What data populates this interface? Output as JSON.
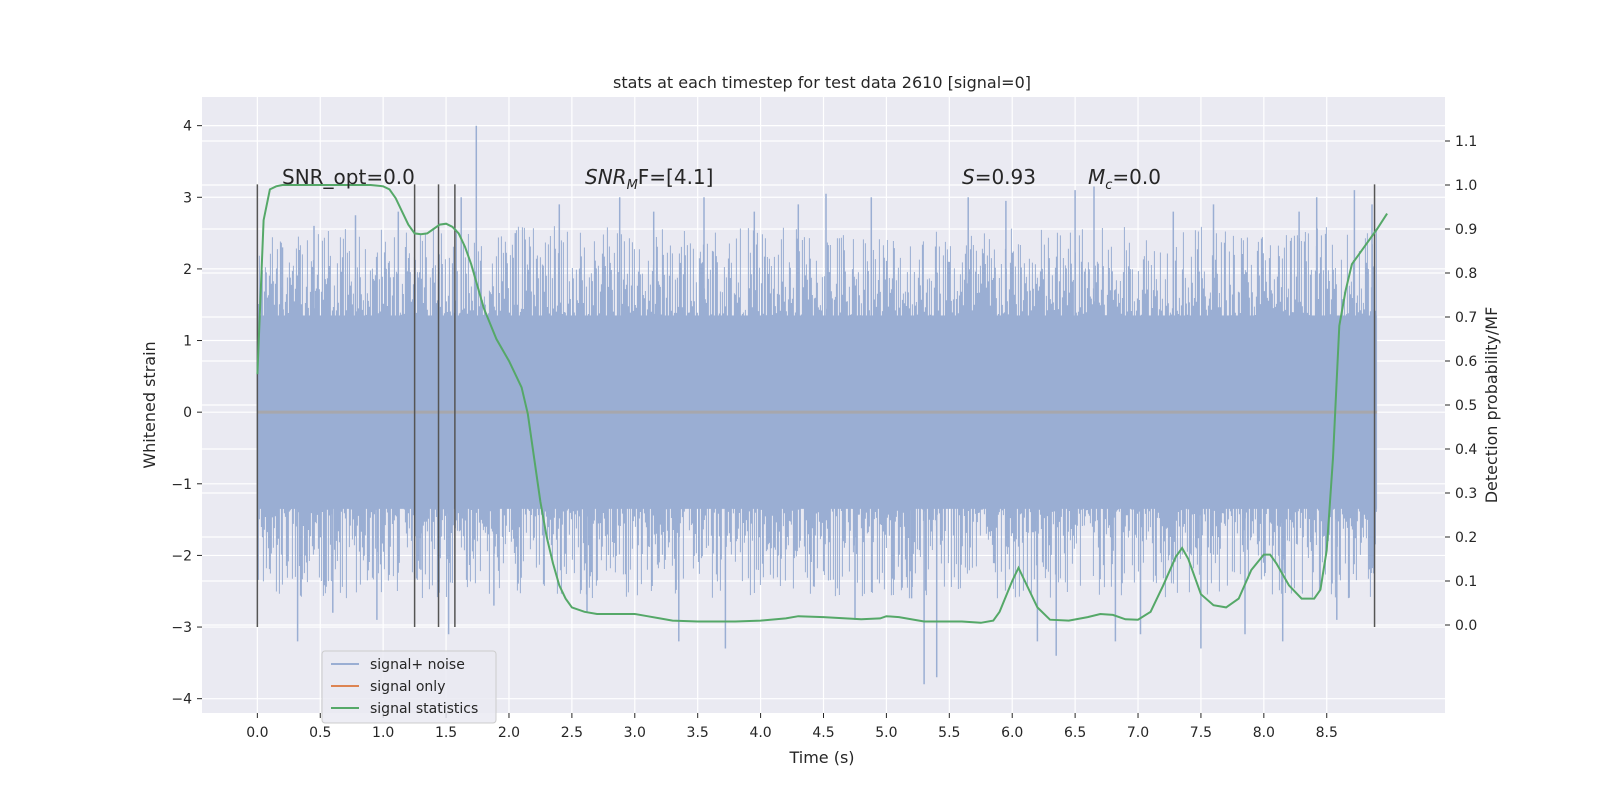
{
  "chart_data": {
    "type": "line",
    "title": "stats at each timestep for test data 2610 [signal=0]",
    "xlabel": "Time (s)",
    "ylabel_left": "Whitened strain",
    "ylabel_right": "Detection probability/MF",
    "xlim": [
      -0.44,
      9.44
    ],
    "ylim_left": [
      -4.2,
      4.4
    ],
    "ylim_right": [
      -0.2,
      1.2
    ],
    "x_ticks": [
      0.0,
      0.5,
      1.0,
      1.5,
      2.0,
      2.5,
      3.0,
      3.5,
      4.0,
      4.5,
      5.0,
      5.5,
      6.0,
      6.5,
      7.0,
      7.5,
      8.0,
      8.5
    ],
    "x_tick_labels": [
      "0.0",
      "0.5",
      "1.0",
      "1.5",
      "2.0",
      "2.5",
      "3.0",
      "3.5",
      "4.0",
      "4.5",
      "5.0",
      "5.5",
      "6.0",
      "6.5",
      "7.0",
      "7.5",
      "8.0",
      "8.5"
    ],
    "y_left_ticks": [
      -4,
      -3,
      -2,
      -1,
      0,
      1,
      2,
      3,
      4
    ],
    "y_left_tick_labels": [
      "−4",
      "−3",
      "−2",
      "−1",
      "0",
      "1",
      "2",
      "3",
      "4"
    ],
    "y_right_ticks": [
      0.0,
      0.1,
      0.2,
      0.3,
      0.4,
      0.5,
      0.6,
      0.7,
      0.8,
      0.9,
      1.0,
      1.1
    ],
    "y_right_tick_labels": [
      "0.0",
      "0.1",
      "0.2",
      "0.3",
      "0.4",
      "0.5",
      "0.6",
      "0.7",
      "0.8",
      "0.9",
      "1.0",
      "1.1"
    ],
    "annotations": {
      "snr_opt": "SNR_opt=0.0",
      "snr_mf_prefix": "SNR",
      "snr_mf_sub": "M",
      "snr_mf_suffix": "F=[4.1]",
      "s_symbol": "S",
      "s_value": "=0.93",
      "mc_symbol": "M",
      "mc_sub": "c",
      "mc_value": "=0.0"
    },
    "vlines_x": [
      0.0,
      1.25,
      1.44,
      1.57,
      8.88
    ],
    "vline_range_left": [
      -3.0,
      3.18
    ],
    "noise_band": {
      "x_range": [
        0.0,
        8.9
      ],
      "core_range": [
        -1.35,
        1.35
      ],
      "typical_extreme_range": [
        -2.6,
        2.6
      ],
      "peaks": [
        [
          0.08,
          1.6
        ],
        [
          0.2,
          2.3
        ],
        [
          0.32,
          -3.2
        ],
        [
          0.45,
          2.6
        ],
        [
          0.6,
          -2.8
        ],
        [
          0.78,
          2.75
        ],
        [
          0.95,
          -2.9
        ],
        [
          1.12,
          2.8
        ],
        [
          1.3,
          -2.2
        ],
        [
          1.52,
          -3.1
        ],
        [
          1.62,
          3.0
        ],
        [
          1.74,
          4.0
        ],
        [
          1.88,
          -2.7
        ],
        [
          2.05,
          2.5
        ],
        [
          2.4,
          2.9
        ],
        [
          2.62,
          -2.8
        ],
        [
          2.88,
          3.0
        ],
        [
          3.15,
          2.8
        ],
        [
          3.35,
          -3.2
        ],
        [
          3.55,
          3.0
        ],
        [
          3.72,
          -3.3
        ],
        [
          3.95,
          2.8
        ],
        [
          4.3,
          2.9
        ],
        [
          4.52,
          3.05
        ],
        [
          4.75,
          -2.9
        ],
        [
          4.88,
          3.0
        ],
        [
          5.2,
          -2.6
        ],
        [
          5.3,
          -3.8
        ],
        [
          5.4,
          -3.7
        ],
        [
          5.65,
          3.0
        ],
        [
          5.95,
          2.95
        ],
        [
          6.2,
          -3.2
        ],
        [
          6.35,
          -3.4
        ],
        [
          6.5,
          3.1
        ],
        [
          6.65,
          3.15
        ],
        [
          6.82,
          -3.2
        ],
        [
          7.02,
          -3.1
        ],
        [
          7.28,
          2.8
        ],
        [
          7.5,
          -3.3
        ],
        [
          7.6,
          2.9
        ],
        [
          7.85,
          -3.1
        ],
        [
          8.15,
          -3.2
        ],
        [
          8.28,
          2.8
        ],
        [
          8.42,
          3.0
        ],
        [
          8.58,
          -2.9
        ],
        [
          8.72,
          3.1
        ],
        [
          8.86,
          2.9
        ]
      ]
    },
    "signal_statistics": {
      "x": [
        0.0,
        0.05,
        0.1,
        0.15,
        0.2,
        0.3,
        0.5,
        0.7,
        0.9,
        1.0,
        1.05,
        1.1,
        1.15,
        1.2,
        1.25,
        1.3,
        1.35,
        1.4,
        1.45,
        1.5,
        1.55,
        1.6,
        1.65,
        1.7,
        1.75,
        1.8,
        1.9,
        2.0,
        2.1,
        2.15,
        2.2,
        2.25,
        2.3,
        2.35,
        2.4,
        2.45,
        2.5,
        2.6,
        2.7,
        2.8,
        2.9,
        3.0,
        3.1,
        3.2,
        3.3,
        3.5,
        3.8,
        4.0,
        4.2,
        4.3,
        4.5,
        4.8,
        4.95,
        5.0,
        5.1,
        5.3,
        5.6,
        5.75,
        5.85,
        5.9,
        6.0,
        6.05,
        6.1,
        6.2,
        6.3,
        6.45,
        6.6,
        6.7,
        6.8,
        6.9,
        7.0,
        7.1,
        7.2,
        7.3,
        7.35,
        7.4,
        7.5,
        7.6,
        7.7,
        7.8,
        7.9,
        8.0,
        8.05,
        8.1,
        8.2,
        8.3,
        8.4,
        8.45,
        8.5,
        8.55,
        8.6,
        8.65,
        8.7,
        8.8,
        8.9,
        8.98
      ],
      "y": [
        0.57,
        0.92,
        0.99,
        0.997,
        1.0,
        1.0,
        1.0,
        1.0,
        1.0,
        0.997,
        0.99,
        0.97,
        0.94,
        0.91,
        0.89,
        0.888,
        0.89,
        0.9,
        0.91,
        0.912,
        0.905,
        0.89,
        0.86,
        0.82,
        0.77,
        0.72,
        0.65,
        0.6,
        0.54,
        0.48,
        0.38,
        0.28,
        0.2,
        0.14,
        0.09,
        0.06,
        0.04,
        0.03,
        0.025,
        0.025,
        0.025,
        0.025,
        0.02,
        0.015,
        0.01,
        0.008,
        0.008,
        0.01,
        0.015,
        0.02,
        0.018,
        0.013,
        0.015,
        0.02,
        0.018,
        0.008,
        0.008,
        0.005,
        0.01,
        0.03,
        0.1,
        0.13,
        0.1,
        0.04,
        0.012,
        0.01,
        0.018,
        0.025,
        0.023,
        0.013,
        0.012,
        0.03,
        0.09,
        0.155,
        0.175,
        0.15,
        0.07,
        0.045,
        0.04,
        0.06,
        0.125,
        0.16,
        0.16,
        0.14,
        0.09,
        0.06,
        0.06,
        0.08,
        0.17,
        0.38,
        0.68,
        0.76,
        0.82,
        0.86,
        0.9,
        0.935
      ]
    },
    "legend": {
      "location": "lower-left",
      "entries": [
        "signal+ noise",
        "signal only",
        "signal statistics"
      ]
    },
    "colors": {
      "plot_background": "#eaeaf2",
      "grid": "#ffffff",
      "noise": "#9aaed3",
      "signal_only": "#dd8452",
      "statistics": "#55a868",
      "vline": "#555555",
      "zero_line": "#a7a7ac",
      "text": "#262626"
    }
  }
}
